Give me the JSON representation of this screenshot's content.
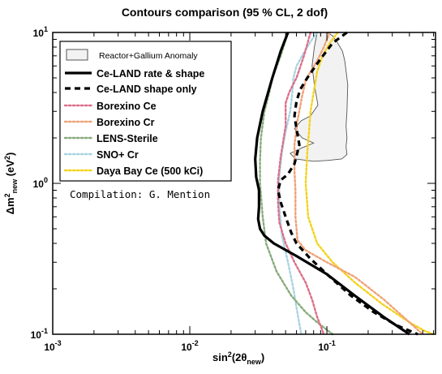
{
  "chart_data": {
    "type": "line",
    "title": "Contours comparison (95 % CL, 2 dof)",
    "xlabel": "sin2(2θnew)",
    "ylabel": "Δm2new (eV2)",
    "x_scale": "log",
    "y_scale": "log",
    "xlim": [
      0.001,
      0.62
    ],
    "ylim": [
      0.1,
      10
    ],
    "x_tick_labels": [
      "10^-3",
      "10^-2",
      "10^-1"
    ],
    "y_tick_labels": [
      "10^-1",
      "10^0",
      "10^1"
    ],
    "x_tick_values": [
      0.001,
      0.01,
      0.1
    ],
    "y_tick_values": [
      0.1,
      1,
      10
    ],
    "annotation": "Compilation: G. Mention",
    "legend_position": "top-left",
    "series": [
      {
        "name": "Reactor+Gallium Anomaly",
        "kind": "region",
        "color": "#f2f2f2",
        "edge_color": "#555555",
        "x": [
          0.085,
          0.081,
          0.078,
          0.081,
          0.086,
          0.076,
          0.065,
          0.058,
          0.066,
          0.08,
          0.066,
          0.054,
          0.059,
          0.08,
          0.102,
          0.128,
          0.14,
          0.138,
          0.14,
          0.138,
          0.14,
          0.142,
          0.135,
          0.13,
          0.12,
          0.11,
          0.1
        ],
        "y": [
          10,
          8,
          6,
          4.5,
          3.3,
          2.8,
          2.6,
          2.3,
          2.0,
          1.85,
          1.72,
          1.58,
          1.45,
          1.4,
          1.42,
          1.45,
          1.55,
          1.75,
          2.0,
          2.4,
          3.0,
          4.5,
          6.5,
          7.5,
          8.5,
          9.5,
          10
        ]
      },
      {
        "name": "Ce-LAND rate & shape",
        "style": "solid-thick",
        "color": "#000000",
        "x": [
          0.052,
          0.046,
          0.04,
          0.034,
          0.031,
          0.03,
          0.0305,
          0.032,
          0.032,
          0.0315,
          0.0325,
          0.035,
          0.041,
          0.06,
          0.1,
          0.16,
          0.26,
          0.4
        ],
        "y": [
          10,
          7.5,
          5,
          3,
          2.0,
          1.45,
          1.1,
          0.9,
          0.7,
          0.58,
          0.5,
          0.45,
          0.4,
          0.33,
          0.25,
          0.18,
          0.13,
          0.1
        ]
      },
      {
        "name": "Ce-LAND shape only",
        "style": "dashed-thick",
        "color": "#000000",
        "x": [
          0.14,
          0.11,
          0.088,
          0.072,
          0.064,
          0.06,
          0.058,
          0.06,
          0.063,
          0.058,
          0.052,
          0.046,
          0.044,
          0.046,
          0.05,
          0.055,
          0.06,
          0.075,
          0.1,
          0.15,
          0.22,
          0.32,
          0.46
        ],
        "y": [
          10,
          8.5,
          6.5,
          5,
          4.2,
          3.5,
          2.8,
          2.3,
          1.8,
          1.35,
          1.15,
          1.05,
          0.9,
          0.75,
          0.6,
          0.47,
          0.4,
          0.32,
          0.25,
          0.18,
          0.14,
          0.115,
          0.1
        ]
      },
      {
        "name": "Borexino Ce",
        "style": "dotted",
        "color": "#dd6f8a",
        "x": [
          0.076,
          0.068,
          0.06,
          0.053,
          0.05,
          0.05,
          0.046,
          0.044,
          0.044,
          0.045,
          0.05,
          0.058,
          0.07,
          0.078,
          0.085,
          0.095
        ],
        "y": [
          10,
          7,
          5,
          4,
          3.4,
          2.4,
          1.5,
          1.05,
          0.75,
          0.55,
          0.4,
          0.3,
          0.22,
          0.17,
          0.13,
          0.1
        ]
      },
      {
        "name": "Borexino Cr",
        "style": "dotted",
        "color": "#f0a277",
        "x": [
          0.105,
          0.095,
          0.085,
          0.076,
          0.07,
          0.066,
          0.061,
          0.058,
          0.058,
          0.059,
          0.059,
          0.061,
          0.07,
          0.1,
          0.16,
          0.26,
          0.4,
          0.5
        ],
        "y": [
          10,
          8,
          6.5,
          5.5,
          4.8,
          3.8,
          2.6,
          1.8,
          1.2,
          0.9,
          0.6,
          0.42,
          0.36,
          0.3,
          0.24,
          0.17,
          0.12,
          0.1
        ]
      },
      {
        "name": "LENS-Sterile",
        "style": "dotted",
        "color": "#87ab7a",
        "x": [
          0.052,
          0.046,
          0.04,
          0.038,
          0.035,
          0.033,
          0.0325,
          0.0325,
          0.034,
          0.036,
          0.043,
          0.055,
          0.07,
          0.085,
          0.11
        ],
        "y": [
          10,
          7,
          5,
          4,
          3,
          2,
          1.4,
          1.0,
          0.6,
          0.4,
          0.26,
          0.18,
          0.14,
          0.12,
          0.1
        ]
      },
      {
        "name": "SNO+ Cr",
        "style": "dotted",
        "color": "#a8d4e2",
        "x": [
          0.085,
          0.078,
          0.072,
          0.066,
          0.06,
          0.057,
          0.056,
          0.054,
          0.05,
          0.047,
          0.045,
          0.045,
          0.047,
          0.052,
          0.057,
          0.06,
          0.065
        ],
        "y": [
          10,
          9,
          8,
          7,
          6,
          5,
          4,
          3,
          2.2,
          1.6,
          1.1,
          0.7,
          0.45,
          0.3,
          0.2,
          0.15,
          0.1
        ]
      },
      {
        "name": "Daya Bay Ce (500 kCi)",
        "style": "dotted",
        "color": "#f5d21b",
        "x": [
          0.12,
          0.105,
          0.093,
          0.085,
          0.08,
          0.076,
          0.074,
          0.072,
          0.07,
          0.073,
          0.085,
          0.11,
          0.16,
          0.25,
          0.4,
          0.52,
          0.6
        ],
        "y": [
          10,
          8.5,
          7,
          5.5,
          4,
          3,
          2.2,
          1.6,
          1.0,
          0.6,
          0.4,
          0.3,
          0.22,
          0.16,
          0.12,
          0.105,
          0.1
        ]
      }
    ]
  }
}
